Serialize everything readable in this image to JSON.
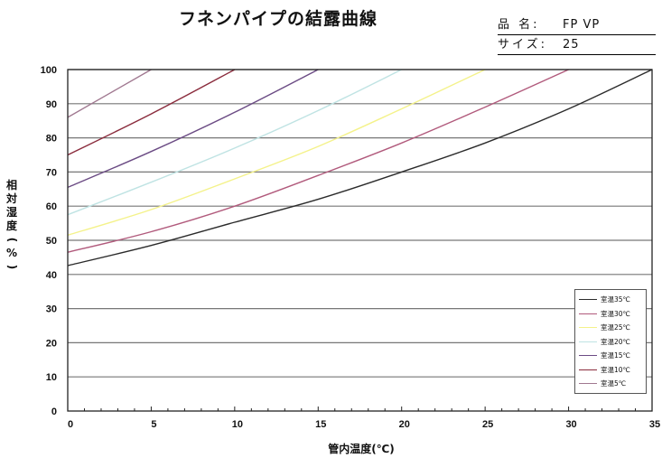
{
  "header": {
    "title": "フネンパイプの結露曲線",
    "product_name_label": "品 名:",
    "product_name_value": "FP VP",
    "size_label": "サイズ:",
    "size_value": "25"
  },
  "chart_data": {
    "type": "line",
    "xlabel": "管内温度(℃)",
    "ylabel": "相対湿度(%)",
    "xlim": [
      0,
      35
    ],
    "ylim": [
      0,
      100
    ],
    "x_ticks": [
      0,
      5,
      10,
      15,
      20,
      25,
      30,
      35
    ],
    "y_ticks": [
      0,
      10,
      20,
      30,
      40,
      50,
      60,
      70,
      80,
      90,
      100
    ],
    "grid": "horizontal",
    "legend_position": "bottom-right",
    "series": [
      {
        "name": "室温35℃",
        "color": "#2b2b2b",
        "x": [
          0,
          5,
          10,
          15,
          20,
          25,
          30,
          35
        ],
        "y": [
          42.6,
          48.5,
          55.3,
          62.0,
          70.0,
          78.5,
          88.5,
          100
        ]
      },
      {
        "name": "室温30℃",
        "color": "#b15a7c",
        "x": [
          0,
          5,
          10,
          15,
          20,
          25,
          30
        ],
        "y": [
          46.5,
          52.5,
          60.0,
          69.0,
          78.5,
          89.0,
          100
        ]
      },
      {
        "name": "室温25℃",
        "color": "#f4f28a",
        "x": [
          0,
          5,
          10,
          15,
          20,
          25
        ],
        "y": [
          51.5,
          59.0,
          68.0,
          77.5,
          88.5,
          100
        ]
      },
      {
        "name": "室温20℃",
        "color": "#bfe3e3",
        "x": [
          0,
          5,
          10,
          15,
          20
        ],
        "y": [
          57.5,
          67.0,
          77.0,
          88.0,
          100
        ]
      },
      {
        "name": "室温15℃",
        "color": "#6b4b84",
        "x": [
          0,
          5,
          10,
          15
        ],
        "y": [
          65.5,
          76.0,
          87.5,
          100
        ]
      },
      {
        "name": "室温10℃",
        "color": "#8a2b3c",
        "x": [
          0,
          5,
          10
        ],
        "y": [
          75.0,
          87.0,
          100
        ]
      },
      {
        "name": "室温5℃",
        "color": "#a07890",
        "x": [
          0,
          5
        ],
        "y": [
          86.0,
          100
        ]
      }
    ]
  }
}
